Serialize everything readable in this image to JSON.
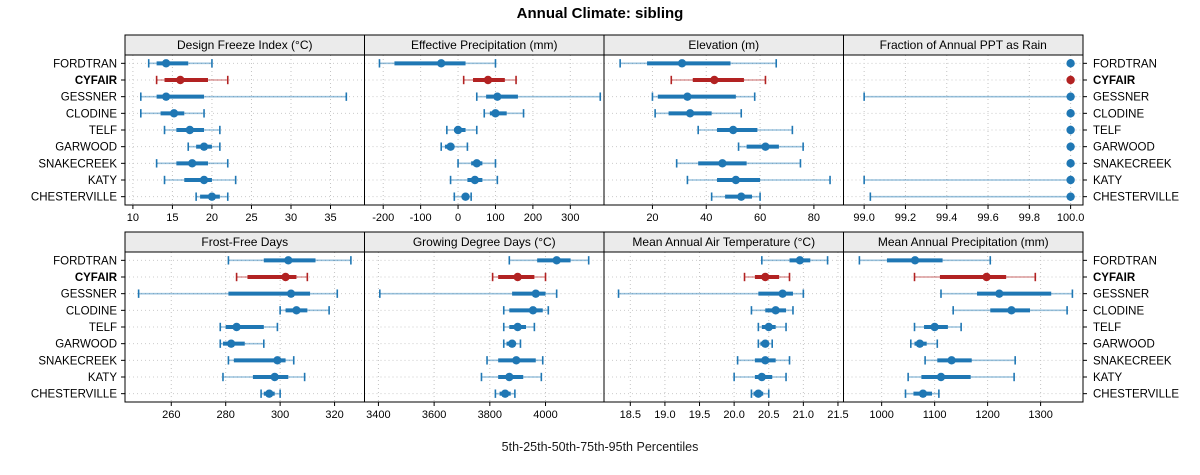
{
  "title": "Annual Climate: sibling",
  "caption": "5th-25th-50th-75th-95th Percentiles",
  "colors": {
    "normal": "#1f77b4",
    "highlight": "#b22222",
    "header_bg": "#ebebeb",
    "panel_border": "#000000",
    "grid": "#c4c4c4",
    "row_grid": "#cccccc"
  },
  "highlight_category": "CYFAIR",
  "categories": [
    "FORDTRAN",
    "CYFAIR",
    "GESSNER",
    "CLODINE",
    "TELF",
    "GARWOOD",
    "SNAKECREEK",
    "KATY",
    "CHESTERVILLE"
  ],
  "chart_data": {
    "type": "dotplot-percentile-trellis",
    "title": "Annual Climate: sibling",
    "xlabel": "5th-25th-50th-75th-95th Percentiles",
    "percentile_labels": [
      "5th",
      "25th",
      "50th",
      "75th",
      "95th"
    ],
    "legend_position": "none",
    "grid": "dotted",
    "panels": [
      {
        "title": "Design Freeze Index (°C)",
        "row": 0,
        "col": 0,
        "xlim": [
          9,
          39.3
        ],
        "ticks": [
          10,
          15,
          20,
          25,
          30,
          35
        ],
        "tick_labels": [
          "10",
          "15",
          "20",
          "25",
          "30",
          "35"
        ],
        "values": [
          [
            12,
            13,
            14.2,
            17,
            20
          ],
          [
            13,
            14,
            16,
            19.5,
            22
          ],
          [
            11,
            13,
            14.2,
            19,
            37
          ],
          [
            11,
            13.5,
            15.2,
            16.5,
            19
          ],
          [
            14,
            15.5,
            17.2,
            19,
            21
          ],
          [
            17,
            18,
            19,
            20,
            21
          ],
          [
            13,
            15.5,
            17.5,
            19.5,
            22
          ],
          [
            14,
            16.5,
            19,
            20,
            23
          ],
          [
            18,
            18.5,
            20,
            21,
            22
          ]
        ]
      },
      {
        "title": "Effective Precipitation (mm)",
        "row": 0,
        "col": 1,
        "xlim": [
          -250,
          390
        ],
        "ticks": [
          -200,
          -100,
          0,
          100,
          200,
          300
        ],
        "tick_labels": [
          "-200",
          "-100",
          "0",
          "100",
          "200",
          "300"
        ],
        "values": [
          [
            -210,
            -170,
            -45,
            20,
            100
          ],
          [
            15,
            40,
            80,
            125,
            155
          ],
          [
            50,
            75,
            105,
            160,
            380
          ],
          [
            70,
            85,
            100,
            130,
            175
          ],
          [
            -30,
            -10,
            0,
            20,
            50
          ],
          [
            -45,
            -35,
            -20,
            -10,
            25
          ],
          [
            0,
            35,
            50,
            65,
            100
          ],
          [
            -20,
            25,
            45,
            65,
            105
          ],
          [
            -10,
            10,
            20,
            30,
            35
          ]
        ]
      },
      {
        "title": "Elevation (m)",
        "row": 0,
        "col": 2,
        "xlim": [
          2,
          91
        ],
        "ticks": [
          20,
          40,
          60,
          80
        ],
        "tick_labels": [
          "20",
          "40",
          "60",
          "80"
        ],
        "values": [
          [
            8,
            18,
            31,
            49,
            66
          ],
          [
            27,
            35,
            43,
            54,
            62
          ],
          [
            20,
            22,
            33,
            51,
            58
          ],
          [
            21,
            26,
            34,
            42,
            53
          ],
          [
            37,
            44,
            50,
            59,
            72
          ],
          [
            52,
            55,
            62,
            67,
            76
          ],
          [
            29,
            37,
            46,
            55,
            75
          ],
          [
            33,
            44,
            51,
            60,
            86
          ],
          [
            42,
            47,
            53,
            57,
            60
          ]
        ]
      },
      {
        "title": "Fraction of Annual PPT as Rain",
        "row": 0,
        "col": 3,
        "xlim": [
          98.9,
          100.06
        ],
        "ticks": [
          99.0,
          99.2,
          99.4,
          99.6,
          99.8,
          100.0
        ],
        "tick_labels": [
          "99.0",
          "99.2",
          "99.4",
          "99.6",
          "99.8",
          "100.0"
        ],
        "values": [
          [
            100,
            100,
            100,
            100,
            100
          ],
          [
            100,
            100,
            100,
            100,
            100
          ],
          [
            99.0,
            100,
            100,
            100,
            100
          ],
          [
            100,
            100,
            100,
            100,
            100
          ],
          [
            100,
            100,
            100,
            100,
            100
          ],
          [
            100,
            100,
            100,
            100,
            100
          ],
          [
            100,
            100,
            100,
            100,
            100
          ],
          [
            99.0,
            100,
            100,
            100,
            100
          ],
          [
            99.03,
            100,
            100,
            100,
            100
          ]
        ]
      },
      {
        "title": "Frost-Free Days",
        "row": 1,
        "col": 0,
        "xlim": [
          243,
          331
        ],
        "ticks": [
          260,
          280,
          300,
          320
        ],
        "tick_labels": [
          "260",
          "280",
          "300",
          "320"
        ],
        "values": [
          [
            281,
            294,
            303,
            313,
            326
          ],
          [
            284,
            288,
            302,
            306,
            310
          ],
          [
            248,
            281,
            304,
            311,
            321
          ],
          [
            300,
            302,
            306,
            310,
            318
          ],
          [
            278,
            280,
            284,
            294,
            299
          ],
          [
            278,
            279,
            282,
            287,
            294
          ],
          [
            281,
            283,
            299,
            302,
            305
          ],
          [
            279,
            290,
            298,
            303,
            309
          ],
          [
            293,
            294,
            296,
            298,
            300
          ]
        ]
      },
      {
        "title": "Growing Degree Days (°C)",
        "row": 1,
        "col": 1,
        "xlim": [
          3350,
          4210
        ],
        "ticks": [
          3400,
          3600,
          3800,
          4000
        ],
        "tick_labels": [
          "3400",
          "3600",
          "3800",
          "4000"
        ],
        "values": [
          [
            3870,
            3970,
            4040,
            4090,
            4155
          ],
          [
            3810,
            3830,
            3900,
            3960,
            4000
          ],
          [
            3405,
            3880,
            3965,
            4000,
            4040
          ],
          [
            3850,
            3870,
            3955,
            3990,
            4010
          ],
          [
            3850,
            3870,
            3900,
            3930,
            3960
          ],
          [
            3850,
            3860,
            3880,
            3890,
            3910
          ],
          [
            3790,
            3830,
            3895,
            3965,
            3990
          ],
          [
            3770,
            3830,
            3870,
            3920,
            3985
          ],
          [
            3820,
            3835,
            3855,
            3875,
            3890
          ]
        ]
      },
      {
        "title": "Mean Annual Air Temperature (°C)",
        "row": 1,
        "col": 2,
        "xlim": [
          18.12,
          21.58
        ],
        "ticks": [
          18.5,
          19.0,
          19.5,
          20.0,
          20.5,
          21.0,
          21.5
        ],
        "tick_labels": [
          "18.5",
          "19.0",
          "19.5",
          "20.0",
          "20.5",
          "21.0",
          "21.5"
        ],
        "values": [
          [
            20.4,
            20.8,
            20.95,
            21.1,
            21.35
          ],
          [
            20.15,
            20.3,
            20.45,
            20.65,
            20.8
          ],
          [
            18.33,
            20.35,
            20.7,
            20.85,
            21.0
          ],
          [
            20.25,
            20.45,
            20.6,
            20.75,
            20.85
          ],
          [
            20.35,
            20.4,
            20.5,
            20.6,
            20.75
          ],
          [
            20.35,
            20.38,
            20.45,
            20.5,
            20.55
          ],
          [
            20.05,
            20.3,
            20.45,
            20.6,
            20.8
          ],
          [
            20.0,
            20.3,
            20.4,
            20.55,
            20.75
          ],
          [
            20.25,
            20.28,
            20.35,
            20.42,
            20.5
          ]
        ]
      },
      {
        "title": "Mean Annual Precipitation (mm)",
        "row": 1,
        "col": 3,
        "xlim": [
          928,
          1380
        ],
        "ticks": [
          1000,
          1100,
          1200,
          1300
        ],
        "tick_labels": [
          "1000",
          "1100",
          "1200",
          "1300"
        ],
        "values": [
          [
            958,
            1010,
            1063,
            1115,
            1205
          ],
          [
            1062,
            1110,
            1198,
            1235,
            1290
          ],
          [
            1112,
            1180,
            1222,
            1320,
            1360
          ],
          [
            1135,
            1205,
            1245,
            1280,
            1350
          ],
          [
            1062,
            1080,
            1100,
            1125,
            1150
          ],
          [
            1055,
            1062,
            1072,
            1085,
            1105
          ],
          [
            1082,
            1105,
            1132,
            1170,
            1252
          ],
          [
            1050,
            1075,
            1112,
            1168,
            1250
          ],
          [
            1045,
            1060,
            1078,
            1095,
            1108
          ]
        ]
      }
    ]
  }
}
